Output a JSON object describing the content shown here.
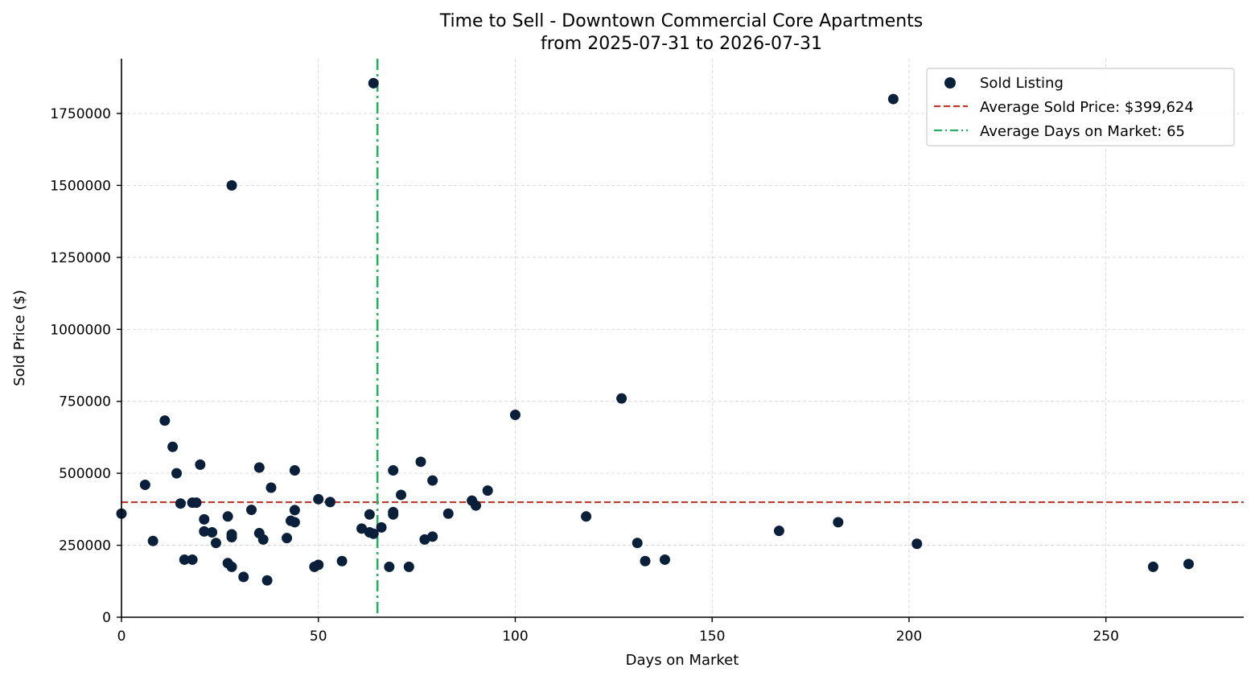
{
  "chart_data": {
    "type": "scatter",
    "title": "Time to Sell - Downtown Commercial Core Apartments",
    "subtitle": "from 2025-07-31 to 2026-07-31",
    "xlabel": "Days on Market",
    "ylabel": "Sold Price ($)",
    "xlim": [
      0,
      285
    ],
    "ylim": [
      0,
      1940000
    ],
    "xticks": [
      0,
      50,
      100,
      150,
      200,
      250
    ],
    "yticks": [
      0,
      250000,
      500000,
      750000,
      1000000,
      1250000,
      1500000,
      1750000
    ],
    "grid": true,
    "legend_position": "top-right",
    "colors": {
      "points": "#0a1f3a",
      "avg_price": "#c0392b",
      "avg_days": "#27ae60"
    },
    "series": [
      {
        "name": "Sold Listing",
        "points": [
          [
            0,
            360000
          ],
          [
            6,
            460000
          ],
          [
            8,
            265000
          ],
          [
            11,
            683000
          ],
          [
            13,
            592000
          ],
          [
            14,
            500000
          ],
          [
            15,
            395000
          ],
          [
            16,
            200000
          ],
          [
            18,
            200000
          ],
          [
            18,
            398000
          ],
          [
            19,
            398000
          ],
          [
            20,
            530000
          ],
          [
            21,
            340000
          ],
          [
            21,
            298000
          ],
          [
            23,
            295000
          ],
          [
            24,
            258000
          ],
          [
            27,
            350000
          ],
          [
            27,
            188000
          ],
          [
            28,
            175000
          ],
          [
            28,
            288000
          ],
          [
            28,
            278000
          ],
          [
            28,
            1500000
          ],
          [
            31,
            140000
          ],
          [
            33,
            373000
          ],
          [
            35,
            520000
          ],
          [
            35,
            292000
          ],
          [
            36,
            270000
          ],
          [
            37,
            128000
          ],
          [
            38,
            450000
          ],
          [
            42,
            275000
          ],
          [
            43,
            335000
          ],
          [
            44,
            372000
          ],
          [
            44,
            330000
          ],
          [
            44,
            510000
          ],
          [
            49,
            175000
          ],
          [
            50,
            182000
          ],
          [
            50,
            410000
          ],
          [
            53,
            400000
          ],
          [
            56,
            195000
          ],
          [
            61,
            308000
          ],
          [
            63,
            295000
          ],
          [
            63,
            357000
          ],
          [
            64,
            290000
          ],
          [
            64,
            1855000
          ],
          [
            66,
            312000
          ],
          [
            68,
            175000
          ],
          [
            69,
            510000
          ],
          [
            69,
            365000
          ],
          [
            69,
            357000
          ],
          [
            71,
            425000
          ],
          [
            73,
            175000
          ],
          [
            76,
            540000
          ],
          [
            77,
            270000
          ],
          [
            79,
            280000
          ],
          [
            79,
            475000
          ],
          [
            83,
            360000
          ],
          [
            89,
            405000
          ],
          [
            90,
            388000
          ],
          [
            93,
            440000
          ],
          [
            100,
            703000
          ],
          [
            118,
            350000
          ],
          [
            127,
            760000
          ],
          [
            131,
            258000
          ],
          [
            133,
            195000
          ],
          [
            138,
            200000
          ],
          [
            167,
            300000
          ],
          [
            182,
            330000
          ],
          [
            196,
            1800000
          ],
          [
            202,
            255000
          ],
          [
            262,
            175000
          ],
          [
            271,
            185000
          ]
        ]
      }
    ],
    "reference_lines": [
      {
        "name": "Average Sold Price: $399,624",
        "axis": "y",
        "value": 399624,
        "style": "dashed"
      },
      {
        "name": "Average Days on Market: 65",
        "axis": "x",
        "value": 65,
        "style": "dashdot"
      }
    ]
  }
}
